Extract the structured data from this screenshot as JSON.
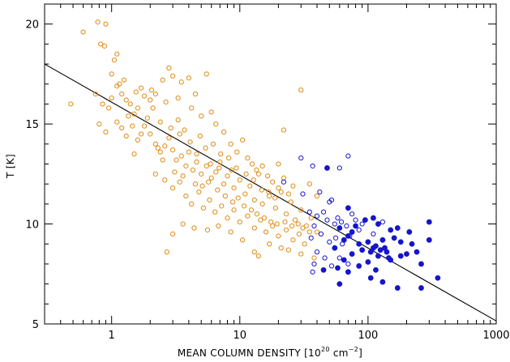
{
  "chart_data": {
    "type": "scatter",
    "title": "",
    "xlabel": "MEAN COLUMN DENSITY [10",
    "xlabel_sup": "20",
    "xlabel_units": " cm",
    "xlabel_units_sup": "−2",
    "xlabel_close": "]",
    "ylabel": "T [K]",
    "xscale": "log",
    "xlim": [
      0.3,
      1000
    ],
    "ylim": [
      5,
      21
    ],
    "x_tick_labels": [
      "1",
      "10",
      "100",
      "1000"
    ],
    "y_tick_labels": [
      "5",
      "10",
      "15",
      "20"
    ],
    "grid": false,
    "fit_line": {
      "x": [
        0.3,
        1000
      ],
      "y": [
        18.0,
        5.15
      ],
      "color": "#000000"
    },
    "series": [
      {
        "marker": "open-circle",
        "color": "#e08a12",
        "points": [
          [
            0.48,
            16.0
          ],
          [
            0.6,
            19.6
          ],
          [
            0.78,
            20.1
          ],
          [
            0.9,
            20.0
          ],
          [
            0.82,
            19.0
          ],
          [
            0.88,
            18.9
          ],
          [
            1.05,
            18.2
          ],
          [
            1.1,
            18.5
          ],
          [
            1.0,
            17.5
          ],
          [
            1.25,
            17.2
          ],
          [
            0.75,
            16.5
          ],
          [
            0.85,
            16.0
          ],
          [
            0.95,
            15.8
          ],
          [
            1.0,
            16.3
          ],
          [
            1.1,
            16.9
          ],
          [
            1.2,
            16.5
          ],
          [
            1.3,
            16.2
          ],
          [
            1.4,
            16.0
          ],
          [
            1.5,
            15.5
          ],
          [
            1.6,
            15.8
          ],
          [
            1.7,
            16.8
          ],
          [
            1.8,
            16.4
          ],
          [
            2.0,
            16.2
          ],
          [
            2.2,
            16.5
          ],
          [
            2.5,
            17.2
          ],
          [
            2.8,
            17.8
          ],
          [
            3.0,
            17.4
          ],
          [
            3.5,
            17.1
          ],
          [
            4.0,
            17.3
          ],
          [
            4.5,
            16.5
          ],
          [
            5.5,
            17.5
          ],
          [
            0.8,
            15.0
          ],
          [
            0.9,
            14.6
          ],
          [
            1.1,
            15.1
          ],
          [
            1.2,
            14.8
          ],
          [
            1.3,
            14.4
          ],
          [
            1.5,
            13.5
          ],
          [
            1.6,
            14.2
          ],
          [
            1.8,
            14.9
          ],
          [
            2.0,
            14.5
          ],
          [
            2.2,
            14.0
          ],
          [
            2.4,
            13.6
          ],
          [
            2.6,
            13.9
          ],
          [
            2.8,
            14.3
          ],
          [
            3.0,
            13.7
          ],
          [
            3.2,
            13.2
          ],
          [
            3.5,
            13.4
          ],
          [
            3.8,
            12.9
          ],
          [
            4.0,
            13.6
          ],
          [
            4.3,
            12.7
          ],
          [
            4.6,
            13.1
          ],
          [
            5.0,
            12.5
          ],
          [
            5.5,
            12.9
          ],
          [
            6.0,
            12.3
          ],
          [
            6.5,
            12.6
          ],
          [
            7.0,
            13.1
          ],
          [
            7.5,
            12.0
          ],
          [
            8.0,
            12.4
          ],
          [
            9.0,
            11.8
          ],
          [
            10.0,
            12.2
          ],
          [
            11.0,
            11.5
          ],
          [
            12.0,
            11.9
          ],
          [
            13.0,
            11.2
          ],
          [
            14.0,
            12.5
          ],
          [
            15.0,
            11.0
          ],
          [
            17.0,
            11.4
          ],
          [
            19.0,
            10.8
          ],
          [
            21.0,
            11.6
          ],
          [
            23.0,
            10.5
          ],
          [
            25.0,
            11.1
          ],
          [
            27.0,
            10.2
          ],
          [
            30.0,
            10.7
          ],
          [
            33.0,
            9.9
          ],
          [
            36.0,
            10.3
          ],
          [
            40.0,
            9.6
          ],
          [
            2.2,
            12.5
          ],
          [
            2.6,
            12.2
          ],
          [
            3.0,
            11.8
          ],
          [
            3.4,
            12.1
          ],
          [
            3.8,
            11.4
          ],
          [
            4.2,
            11.0
          ],
          [
            4.8,
            11.6
          ],
          [
            5.2,
            10.8
          ],
          [
            5.8,
            11.2
          ],
          [
            6.4,
            10.6
          ],
          [
            7.2,
            10.9
          ],
          [
            8.0,
            10.3
          ],
          [
            9.0,
            10.7
          ],
          [
            10.0,
            10.1
          ],
          [
            11.5,
            10.4
          ],
          [
            13.0,
            9.8
          ],
          [
            14.5,
            10.2
          ],
          [
            16.0,
            9.6
          ],
          [
            18.0,
            9.9
          ],
          [
            20.0,
            9.4
          ],
          [
            23.0,
            9.7
          ],
          [
            26.0,
            9.2
          ],
          [
            29.0,
            9.5
          ],
          [
            32.0,
            9.0
          ],
          [
            6.5,
            15.0
          ],
          [
            7.5,
            14.6
          ],
          [
            8.5,
            14.0
          ],
          [
            9.5,
            13.6
          ],
          [
            10.5,
            14.2
          ],
          [
            11.5,
            13.3
          ],
          [
            12.5,
            13.0
          ],
          [
            13.5,
            12.7
          ],
          [
            15.0,
            12.9
          ],
          [
            16.5,
            12.4
          ],
          [
            18.0,
            12.1
          ],
          [
            20.0,
            11.8
          ],
          [
            22.0,
            12.3
          ],
          [
            24.0,
            11.5
          ],
          [
            26.0,
            11.9
          ],
          [
            2.7,
            8.6
          ],
          [
            3.0,
            9.5
          ],
          [
            3.6,
            10.0
          ],
          [
            4.4,
            9.8
          ],
          [
            5.6,
            9.7
          ],
          [
            6.8,
            9.9
          ],
          [
            8.5,
            9.6
          ],
          [
            10.5,
            9.2
          ],
          [
            14.0,
            8.4
          ],
          [
            13.0,
            8.6
          ],
          [
            17.0,
            9.0
          ],
          [
            21.0,
            8.8
          ],
          [
            24.0,
            8.7
          ],
          [
            30.0,
            8.5
          ],
          [
            38.0,
            8.3
          ],
          [
            30.0,
            16.7
          ],
          [
            22.0,
            14.7
          ],
          [
            20.0,
            13.0
          ],
          [
            40.0,
            11.4
          ],
          [
            35.0,
            12.0
          ],
          [
            1.9,
            15.3
          ],
          [
            2.1,
            15.8
          ],
          [
            2.4,
            15.1
          ],
          [
            2.9,
            14.8
          ],
          [
            3.3,
            15.2
          ],
          [
            3.7,
            14.7
          ],
          [
            4.1,
            14.1
          ],
          [
            4.9,
            14.4
          ],
          [
            5.4,
            13.8
          ],
          [
            6.2,
            14.0
          ],
          [
            7.1,
            13.5
          ],
          [
            8.2,
            13.3
          ],
          [
            9.4,
            12.8
          ],
          [
            1.35,
            15.4
          ],
          [
            1.45,
            14.9
          ],
          [
            1.7,
            14.5
          ],
          [
            2.3,
            13.8
          ],
          [
            2.5,
            13.2
          ],
          [
            3.1,
            12.6
          ],
          [
            3.6,
            12.4
          ],
          [
            4.5,
            12.0
          ],
          [
            5.1,
            11.9
          ],
          [
            5.7,
            12.1
          ],
          [
            6.7,
            11.7
          ],
          [
            7.7,
            11.4
          ],
          [
            8.8,
            11.1
          ],
          [
            9.7,
            11.3
          ],
          [
            10.8,
            10.9
          ],
          [
            12.3,
            10.7
          ],
          [
            13.6,
            10.5
          ],
          [
            15.5,
            10.3
          ],
          [
            17.5,
            10.1
          ],
          [
            19.5,
            10.0
          ],
          [
            22.5,
            10.1
          ],
          [
            25.5,
            9.9
          ],
          [
            28.5,
            10.0
          ],
          [
            31.0,
            9.8
          ],
          [
            35.0,
            9.6
          ],
          [
            1.15,
            17.0
          ],
          [
            1.55,
            16.6
          ],
          [
            2.05,
            16.7
          ],
          [
            2.65,
            16.1
          ],
          [
            3.3,
            16.3
          ],
          [
            4.2,
            15.8
          ],
          [
            5.0,
            15.4
          ],
          [
            6.0,
            15.6
          ],
          [
            3.4,
            14.5
          ],
          [
            4.6,
            13.5
          ],
          [
            5.9,
            13.0
          ],
          [
            6.9,
            12.8
          ],
          [
            8.6,
            12.7
          ],
          [
            11.2,
            12.5
          ],
          [
            12.8,
            12.2
          ],
          [
            14.8,
            11.7
          ],
          [
            16.8,
            11.6
          ],
          [
            18.8,
            11.3
          ]
        ]
      },
      {
        "marker": "open-circle",
        "color": "#1515cc",
        "points": [
          [
            30,
            13.3
          ],
          [
            37,
            12.9
          ],
          [
            50,
            11.1
          ],
          [
            52,
            11.2
          ],
          [
            60,
            12.8
          ],
          [
            70,
            13.4
          ],
          [
            42,
            11.6
          ],
          [
            35,
            10.6
          ],
          [
            40,
            10.4
          ],
          [
            45,
            10.6
          ],
          [
            48,
            10.2
          ],
          [
            55,
            10.0
          ],
          [
            58,
            10.3
          ],
          [
            62,
            10.1
          ],
          [
            68,
            9.9
          ],
          [
            75,
            10.5
          ],
          [
            80,
            10.2
          ],
          [
            90,
            10.0
          ],
          [
            130,
            10.1
          ],
          [
            38,
            9.9
          ],
          [
            43,
            9.5
          ],
          [
            50,
            9.1
          ],
          [
            56,
            9.3
          ],
          [
            63,
            9.0
          ],
          [
            72,
            9.4
          ],
          [
            36,
            9.3
          ],
          [
            40,
            8.6
          ],
          [
            46,
            8.3
          ],
          [
            38,
            8.0
          ],
          [
            37,
            7.6
          ],
          [
            52,
            7.9
          ],
          [
            60,
            8.3
          ],
          [
            70,
            8.0
          ],
          [
            85,
            9.7
          ],
          [
            110,
            9.5
          ],
          [
            22,
            12.1
          ],
          [
            31,
            11.5
          ]
        ]
      },
      {
        "marker": "filled-circle",
        "color": "#1515cc",
        "points": [
          [
            48,
            12.8
          ],
          [
            70,
            10.8
          ],
          [
            60,
            9.8
          ],
          [
            80,
            9.9
          ],
          [
            95,
            10.2
          ],
          [
            110,
            10.3
          ],
          [
            120,
            10.0
          ],
          [
            150,
            9.7
          ],
          [
            170,
            9.8
          ],
          [
            210,
            9.6
          ],
          [
            300,
            10.1
          ],
          [
            65,
            9.2
          ],
          [
            70,
            9.4
          ],
          [
            85,
            9.0
          ],
          [
            100,
            9.1
          ],
          [
            115,
            8.9
          ],
          [
            130,
            9.2
          ],
          [
            140,
            8.6
          ],
          [
            160,
            9.3
          ],
          [
            180,
            9.1
          ],
          [
            220,
            9.0
          ],
          [
            300,
            9.2
          ],
          [
            55,
            8.8
          ],
          [
            65,
            8.2
          ],
          [
            75,
            8.5
          ],
          [
            90,
            8.7
          ],
          [
            105,
            8.6
          ],
          [
            120,
            8.4
          ],
          [
            135,
            8.8
          ],
          [
            145,
            8.3
          ],
          [
            180,
            8.4
          ],
          [
            200,
            8.5
          ],
          [
            240,
            8.6
          ],
          [
            58,
            7.8
          ],
          [
            70,
            7.6
          ],
          [
            85,
            7.9
          ],
          [
            100,
            8.1
          ],
          [
            115,
            7.7
          ],
          [
            125,
            8.7
          ],
          [
            150,
            8.2
          ],
          [
            260,
            8.0
          ],
          [
            105,
            7.3
          ],
          [
            130,
            7.1
          ],
          [
            170,
            6.8
          ],
          [
            260,
            6.8
          ],
          [
            350,
            7.3
          ],
          [
            45,
            7.7
          ],
          [
            60,
            7.0
          ],
          [
            75,
            9.6
          ],
          [
            110,
            8.8
          ]
        ]
      }
    ]
  }
}
